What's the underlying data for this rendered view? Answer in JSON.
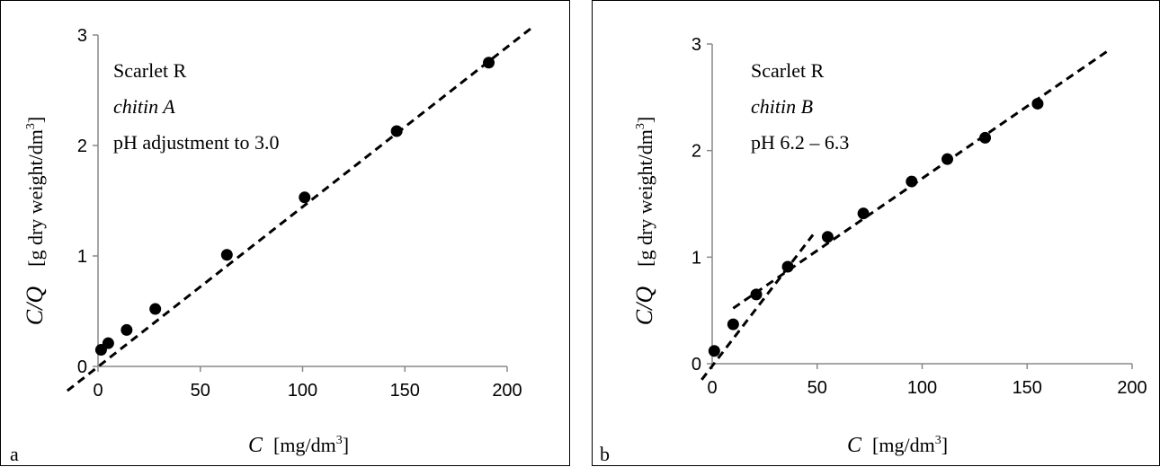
{
  "chart_data": [
    {
      "panel": "a",
      "type": "scatter",
      "annotation": [
        "Scarlet R",
        "chitin A",
        "pH adjustment to 3.0"
      ],
      "xlabel": "C",
      "xunit": "[mg/dm3]",
      "ylabel": "C/Q",
      "yunit": "[g dry weight/dm3]",
      "xlim": [
        0,
        200
      ],
      "ylim": [
        0,
        3
      ],
      "xticks": [
        "0",
        "50",
        "100",
        "150",
        "200"
      ],
      "yticks": [
        "0",
        "1",
        "2",
        "3"
      ],
      "grid": false,
      "series": [
        {
          "points": [
            {
              "x": 1.5,
              "y": 0.15
            },
            {
              "x": 5,
              "y": 0.21
            },
            {
              "x": 14,
              "y": 0.33
            },
            {
              "x": 28,
              "y": 0.52
            },
            {
              "x": 63,
              "y": 1.01
            },
            {
              "x": 101,
              "y": 1.53
            },
            {
              "x": 146,
              "y": 2.13
            },
            {
              "x": 191,
              "y": 2.75
            }
          ]
        }
      ],
      "fit_lines": [
        {
          "style": "dashed",
          "from": {
            "x": -15,
            "y": -0.22
          },
          "to": {
            "x": 213,
            "y": 3.08
          }
        }
      ]
    },
    {
      "panel": "b",
      "type": "scatter",
      "annotation": [
        "Scarlet R",
        "chitin B",
        "pH 6.2 – 6.3"
      ],
      "xlabel": "C",
      "xunit": "[mg/dm3]",
      "ylabel": "C/Q",
      "yunit": "[g dry weight/dm3]",
      "xlim": [
        0,
        200
      ],
      "ylim": [
        0,
        3
      ],
      "xticks": [
        "0",
        "50",
        "100",
        "150",
        "200"
      ],
      "yticks": [
        "0",
        "1",
        "2",
        "3"
      ],
      "grid": false,
      "series": [
        {
          "points": [
            {
              "x": 1,
              "y": 0.12
            },
            {
              "x": 10,
              "y": 0.37
            },
            {
              "x": 21,
              "y": 0.65
            },
            {
              "x": 36,
              "y": 0.91
            },
            {
              "x": 55,
              "y": 1.19
            },
            {
              "x": 72,
              "y": 1.41
            },
            {
              "x": 95,
              "y": 1.71
            },
            {
              "x": 112,
              "y": 1.92
            },
            {
              "x": 130,
              "y": 2.12
            },
            {
              "x": 155,
              "y": 2.44
            }
          ]
        }
      ],
      "fit_lines": [
        {
          "style": "dashed",
          "from": {
            "x": -5,
            "y": -0.15
          },
          "to": {
            "x": 48,
            "y": 1.21
          }
        },
        {
          "style": "dashed",
          "from": {
            "x": 10,
            "y": 0.52
          },
          "to": {
            "x": 188,
            "y": 2.93
          }
        }
      ]
    }
  ],
  "panels": {
    "a": {
      "letter": "a"
    },
    "b": {
      "letter": "b"
    }
  }
}
